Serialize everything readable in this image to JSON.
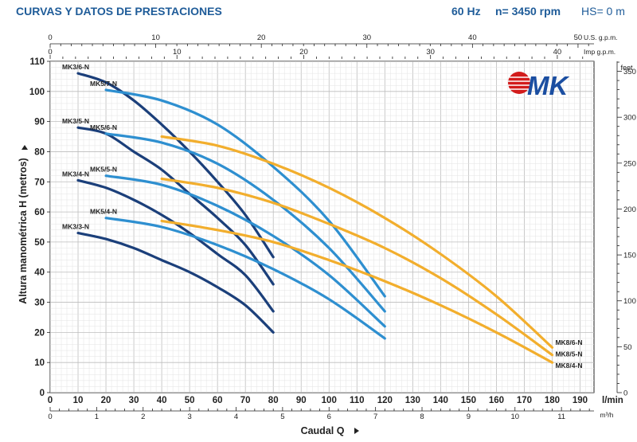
{
  "header": {
    "title": "CURVAS Y DATOS DE PRESTACIONES",
    "frequency": "60 Hz",
    "speed": "n= 3450 rpm",
    "suction_head": "HS= 0 m"
  },
  "logo": {
    "text": "MK"
  },
  "chart_data": {
    "type": "line",
    "title": "CURVAS Y DATOS DE PRESTACIONES",
    "xlabel": "Caudal Q",
    "ylabel": "Altura manométrica H (metros)",
    "x_unit": "l/min",
    "xlim": [
      0,
      195
    ],
    "ylim": [
      0,
      110
    ],
    "grid": true,
    "axes": {
      "lmin": {
        "ticks": [
          0,
          10,
          20,
          30,
          40,
          50,
          60,
          70,
          80,
          90,
          100,
          110,
          120,
          130,
          140,
          150,
          160,
          170,
          180,
          190
        ],
        "unit": "l/min"
      },
      "m3h": {
        "ticks": [
          0,
          1,
          2,
          3,
          4,
          5,
          6,
          7,
          8,
          9,
          10,
          11
        ],
        "unit": "m³/h"
      },
      "us_gpm": {
        "ticks": [
          0,
          10,
          20,
          30,
          40,
          50
        ],
        "unit": "U.S. g.p.m."
      },
      "imp_gpm": {
        "ticks": [
          0,
          10,
          20,
          30,
          40
        ],
        "unit": "Imp g.p.m."
      },
      "feet": {
        "ticks": [
          0,
          50,
          100,
          150,
          200,
          250,
          300,
          350
        ],
        "unit": "feet"
      },
      "metres": {
        "ticks": [
          0,
          10,
          20,
          30,
          40,
          50,
          60,
          70,
          80,
          90,
          100,
          110
        ]
      }
    },
    "series": [
      {
        "name": "MK3/6-N",
        "color": "#1b3f7a",
        "label_at": [
          10,
          106
        ],
        "points": [
          [
            10,
            106
          ],
          [
            20,
            103
          ],
          [
            30,
            97
          ],
          [
            40,
            89
          ],
          [
            50,
            80
          ],
          [
            60,
            70
          ],
          [
            70,
            59
          ],
          [
            80,
            45
          ]
        ]
      },
      {
        "name": "MK3/5-N",
        "color": "#1b3f7a",
        "label_at": [
          10,
          88
        ],
        "points": [
          [
            10,
            88
          ],
          [
            20,
            86
          ],
          [
            30,
            80
          ],
          [
            40,
            74
          ],
          [
            50,
            66
          ],
          [
            60,
            58
          ],
          [
            70,
            49
          ],
          [
            80,
            36
          ]
        ]
      },
      {
        "name": "MK3/4-N",
        "color": "#1b3f7a",
        "label_at": [
          10,
          70.5
        ],
        "points": [
          [
            10,
            70.5
          ],
          [
            20,
            68
          ],
          [
            30,
            64
          ],
          [
            40,
            59
          ],
          [
            50,
            53
          ],
          [
            60,
            46
          ],
          [
            70,
            39
          ],
          [
            80,
            27
          ]
        ]
      },
      {
        "name": "MK3/3-N",
        "color": "#1b3f7a",
        "label_at": [
          10,
          53
        ],
        "points": [
          [
            10,
            53
          ],
          [
            20,
            51
          ],
          [
            30,
            48
          ],
          [
            40,
            44
          ],
          [
            50,
            40
          ],
          [
            60,
            35
          ],
          [
            70,
            29
          ],
          [
            80,
            20
          ]
        ]
      },
      {
        "name": "MK5/7-N",
        "color": "#2e8fd0",
        "label_at": [
          20,
          100.5
        ],
        "points": [
          [
            20,
            100.5
          ],
          [
            40,
            97
          ],
          [
            60,
            89
          ],
          [
            80,
            75
          ],
          [
            100,
            57
          ],
          [
            120,
            32
          ]
        ]
      },
      {
        "name": "MK5/6-N",
        "color": "#2e8fd0",
        "label_at": [
          20,
          86
        ],
        "points": [
          [
            20,
            86
          ],
          [
            40,
            83
          ],
          [
            60,
            76
          ],
          [
            80,
            64
          ],
          [
            100,
            48
          ],
          [
            120,
            27
          ]
        ]
      },
      {
        "name": "MK5/5-N",
        "color": "#2e8fd0",
        "label_at": [
          20,
          72
        ],
        "points": [
          [
            20,
            72
          ],
          [
            40,
            69
          ],
          [
            60,
            62
          ],
          [
            80,
            52
          ],
          [
            100,
            39
          ],
          [
            120,
            22
          ]
        ]
      },
      {
        "name": "MK5/4-N",
        "color": "#2e8fd0",
        "label_at": [
          20,
          58
        ],
        "points": [
          [
            20,
            58
          ],
          [
            40,
            55
          ],
          [
            60,
            49
          ],
          [
            80,
            41
          ],
          [
            100,
            31
          ],
          [
            120,
            18
          ]
        ]
      },
      {
        "name": "MK8/6-N",
        "color": "#f2ae2d",
        "label_at": [
          180,
          15
        ],
        "points": [
          [
            40,
            85
          ],
          [
            60,
            82
          ],
          [
            80,
            76
          ],
          [
            100,
            68
          ],
          [
            120,
            58
          ],
          [
            140,
            46
          ],
          [
            160,
            32
          ],
          [
            180,
            15
          ]
        ]
      },
      {
        "name": "MK8/5-N",
        "color": "#f2ae2d",
        "label_at": [
          180,
          12.5
        ],
        "points": [
          [
            40,
            71
          ],
          [
            60,
            68
          ],
          [
            80,
            63
          ],
          [
            100,
            56
          ],
          [
            120,
            48
          ],
          [
            140,
            38
          ],
          [
            160,
            26
          ],
          [
            180,
            12.5
          ]
        ]
      },
      {
        "name": "MK8/4-N",
        "color": "#f2ae2d",
        "label_at": [
          180,
          10
        ],
        "points": [
          [
            40,
            57
          ],
          [
            60,
            54
          ],
          [
            80,
            50
          ],
          [
            100,
            44
          ],
          [
            120,
            37
          ],
          [
            140,
            29
          ],
          [
            160,
            20
          ],
          [
            180,
            10
          ]
        ]
      }
    ]
  }
}
